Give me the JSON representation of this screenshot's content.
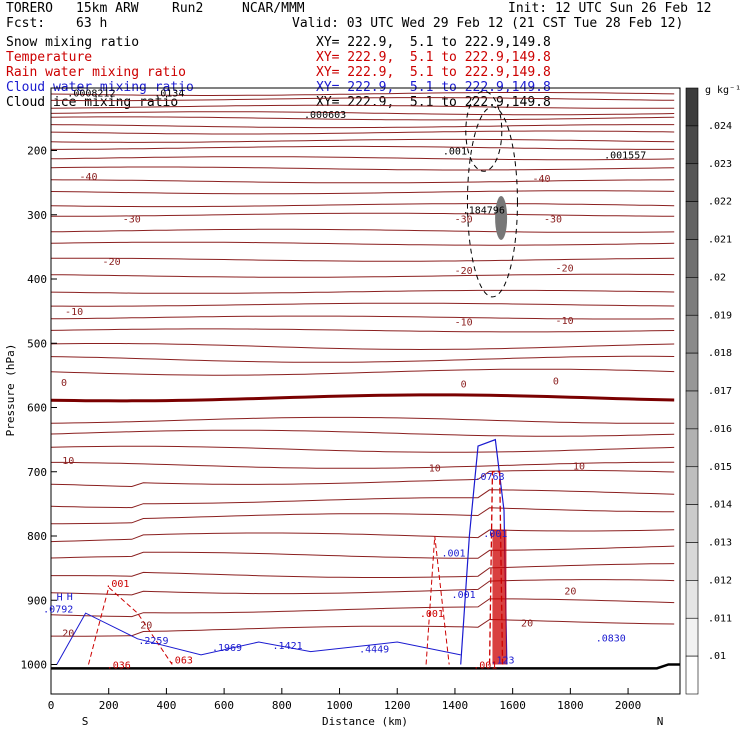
{
  "header": {
    "model": "TORERO",
    "resolution": "15km ARW",
    "run": "Run2",
    "center": "NCAR/MMM",
    "init": "Init: 12 UTC Sun 26 Feb 12",
    "fcst_label": "Fcst:",
    "fcst_value": "63 h",
    "valid": "Valid: 03 UTC Wed 29 Feb 12 (21 CST Tue 28 Feb 12)"
  },
  "fields": [
    {
      "name": "Snow mixing ratio",
      "color": "#000000",
      "xy": "XY= 222.9,  5.1 to 222.9,149.8"
    },
    {
      "name": "Temperature",
      "color": "#cc0000",
      "xy": "XY= 222.9,  5.1 to 222.9,149.8"
    },
    {
      "name": "Rain water mixing ratio",
      "color": "#cc0000",
      "xy": "XY= 222.9,  5.1 to 222.9,149.8"
    },
    {
      "name": "Cloud water mixing ratio",
      "color": "#1a1ad0",
      "xy": "XY= 222.9,  5.1 to 222.9,149.8"
    },
    {
      "name": "Cloud ice mixing ratio",
      "color": "#000000",
      "xy": "XY= 222.9,  5.1 to 222.9,149.8"
    }
  ],
  "chart_data": {
    "type": "contour",
    "xlabel": "Distance (km)",
    "ylabel": "Pressure (hPa)",
    "xlim": [
      0,
      2180
    ],
    "ylim": [
      1050,
      100
    ],
    "x_ticks": [
      0,
      200,
      400,
      600,
      800,
      1000,
      1200,
      1400,
      1600,
      1800,
      2000
    ],
    "y_ticks": [
      100,
      200,
      300,
      400,
      500,
      600,
      700,
      800,
      900,
      1000
    ],
    "left_end": "S",
    "right_end": "N",
    "colorbar": {
      "unit": "g kg⁻¹",
      "labels": [
        ".024",
        ".023",
        ".022",
        ".021",
        ".02",
        ".019",
        ".018",
        ".017",
        ".016",
        ".015",
        ".014",
        ".013",
        ".012",
        ".011",
        ".01"
      ]
    },
    "temperature_labels": [
      {
        "text": "-40",
        "x": 130,
        "p": 240
      },
      {
        "text": "-40",
        "x": 1700,
        "p": 243
      },
      {
        "text": "-30",
        "x": 280,
        "p": 306
      },
      {
        "text": "-30",
        "x": 1430,
        "p": 306
      },
      {
        "text": "-30",
        "x": 1740,
        "p": 306
      },
      {
        "text": "-20",
        "x": 210,
        "p": 372
      },
      {
        "text": "-20",
        "x": 1430,
        "p": 386
      },
      {
        "text": "-20",
        "x": 1780,
        "p": 382
      },
      {
        "text": "-10",
        "x": 80,
        "p": 450
      },
      {
        "text": "-10",
        "x": 1430,
        "p": 466
      },
      {
        "text": "-10",
        "x": 1780,
        "p": 464
      },
      {
        "text": "0",
        "x": 45,
        "p": 560
      },
      {
        "text": "0",
        "x": 1430,
        "p": 563
      },
      {
        "text": "0",
        "x": 1750,
        "p": 558
      },
      {
        "text": "10",
        "x": 60,
        "p": 682
      },
      {
        "text": "10",
        "x": 1330,
        "p": 693
      },
      {
        "text": "10",
        "x": 1830,
        "p": 690
      },
      {
        "text": "20",
        "x": 330,
        "p": 938
      },
      {
        "text": "20",
        "x": 1650,
        "p": 935
      },
      {
        "text": "20",
        "x": 1800,
        "p": 885
      },
      {
        "text": "20",
        "x": 60,
        "p": 950
      }
    ],
    "annotations": [
      {
        "text": "H",
        "x": 30,
        "p": 894,
        "color": "#1a1ad0"
      },
      {
        "text": "H",
        "x": 65,
        "p": 893,
        "color": "#1a1ad0"
      },
      {
        "text": ".0792",
        "x": 25,
        "p": 913,
        "color": "#1a1ad0"
      },
      {
        "text": ".001",
        "x": 230,
        "p": 873,
        "color": "#cc0000"
      },
      {
        "text": ".2259",
        "x": 355,
        "p": 962,
        "color": "#1a1ad0"
      },
      {
        "text": ".1969",
        "x": 610,
        "p": 973,
        "color": "#1a1ad0"
      },
      {
        "text": ".1421",
        "x": 820,
        "p": 970,
        "color": "#1a1ad0"
      },
      {
        "text": ".4449",
        "x": 1120,
        "p": 975,
        "color": "#1a1ad0"
      },
      {
        "text": ".0763",
        "x": 1520,
        "p": 707,
        "color": "#1a1ad0"
      },
      {
        "text": ".001",
        "x": 1540,
        "p": 795,
        "color": "#1a1ad0"
      },
      {
        "text": ".001",
        "x": 1395,
        "p": 826,
        "color": "#1a1ad0"
      },
      {
        "text": ".001",
        "x": 1430,
        "p": 890,
        "color": "#1a1ad0"
      },
      {
        "text": ".001",
        "x": 1320,
        "p": 920,
        "color": "#cc0000"
      },
      {
        "text": ".0830",
        "x": 1940,
        "p": 958,
        "color": "#1a1ad0"
      },
      {
        "text": ".123",
        "x": 1565,
        "p": 992,
        "color": "#1a1ad0"
      },
      {
        "text": ".036",
        "x": 235,
        "p": 1000,
        "color": "#cc0000"
      },
      {
        "text": ".063",
        "x": 450,
        "p": 992,
        "color": "#cc0000"
      },
      {
        "text": ".001",
        "x": 1505,
        "p": 1000,
        "color": "#cc0000"
      },
      {
        "text": ".001557",
        "x": 1990,
        "p": 206,
        "color": "#000000"
      },
      {
        "text": ".000603",
        "x": 950,
        "p": 143,
        "color": "#000000"
      },
      {
        "text": ".184796",
        "x": 1500,
        "p": 292,
        "color": "#000000"
      },
      {
        "text": ".001",
        "x": 1400,
        "p": 200,
        "color": "#000000"
      },
      {
        "text": ".0008212",
        "x": 140,
        "p": 110,
        "color": "#000000"
      },
      {
        "text": ".0134",
        "x": 410,
        "p": 110,
        "color": "#000000"
      }
    ]
  }
}
